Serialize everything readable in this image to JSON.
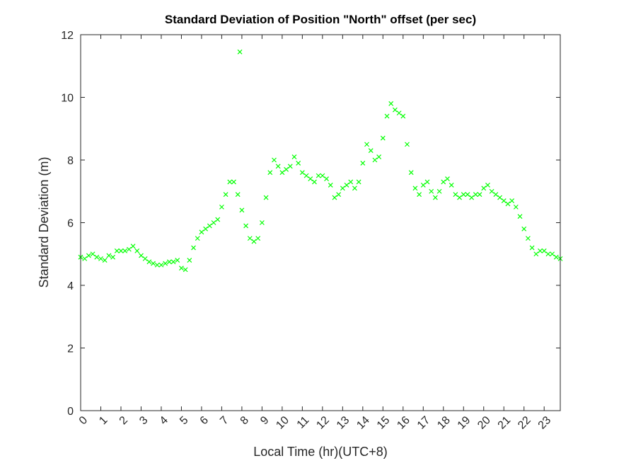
{
  "chart_data": {
    "type": "scatter",
    "title": "Standard Deviation of Position \"North\" offset (per sec)",
    "x_label": "Local Time (hr)(UTC+8)",
    "y_label": "Standard Deviation (m)",
    "xlim": [
      0,
      23.8
    ],
    "ylim": [
      0,
      12
    ],
    "xticks": [
      0,
      1,
      2,
      3,
      4,
      5,
      6,
      7,
      8,
      9,
      10,
      11,
      12,
      13,
      14,
      15,
      16,
      17,
      18,
      19,
      20,
      21,
      22,
      23
    ],
    "yticks": [
      0,
      2,
      4,
      6,
      8,
      10,
      12
    ],
    "series": [
      {
        "color": "#00ff00",
        "marker": "x",
        "x": [
          0,
          0.2,
          0.4,
          0.6,
          0.8,
          1.0,
          1.2,
          1.4,
          1.6,
          1.8,
          2.0,
          2.2,
          2.4,
          2.6,
          2.8,
          3.0,
          3.2,
          3.4,
          3.6,
          3.8,
          4.0,
          4.2,
          4.4,
          4.6,
          4.8,
          5.0,
          5.2,
          5.4,
          5.6,
          5.8,
          6.0,
          6.2,
          6.4,
          6.6,
          6.8,
          7.0,
          7.2,
          7.4,
          7.6,
          7.8,
          7.9,
          8.0,
          8.2,
          8.4,
          8.6,
          8.8,
          9.0,
          9.2,
          9.4,
          9.6,
          9.8,
          10.0,
          10.2,
          10.4,
          10.6,
          10.8,
          11.0,
          11.2,
          11.4,
          11.6,
          11.8,
          12.0,
          12.2,
          12.4,
          12.6,
          12.8,
          13.0,
          13.2,
          13.4,
          13.6,
          13.8,
          14.0,
          14.2,
          14.4,
          14.6,
          14.8,
          15.0,
          15.2,
          15.4,
          15.6,
          15.8,
          16.0,
          16.2,
          16.4,
          16.6,
          16.8,
          17.0,
          17.2,
          17.4,
          17.6,
          17.8,
          18.0,
          18.2,
          18.4,
          18.6,
          18.8,
          19.0,
          19.2,
          19.4,
          19.6,
          19.8,
          20.0,
          20.2,
          20.4,
          20.6,
          20.8,
          21.0,
          21.2,
          21.4,
          21.6,
          21.8,
          22.0,
          22.2,
          22.4,
          22.6,
          22.8,
          23.0,
          23.2,
          23.4,
          23.6,
          23.8
        ],
        "values": [
          4.9,
          4.85,
          4.95,
          5.0,
          4.9,
          4.85,
          4.8,
          4.95,
          4.9,
          5.1,
          5.1,
          5.1,
          5.15,
          5.25,
          5.1,
          4.95,
          4.85,
          4.75,
          4.7,
          4.65,
          4.65,
          4.7,
          4.75,
          4.75,
          4.8,
          4.55,
          4.5,
          4.8,
          5.2,
          5.5,
          5.7,
          5.8,
          5.9,
          6.0,
          6.1,
          6.5,
          6.9,
          7.3,
          7.3,
          6.9,
          11.45,
          6.4,
          5.9,
          5.5,
          5.4,
          5.5,
          6.0,
          6.8,
          7.6,
          8.0,
          7.8,
          7.6,
          7.7,
          7.8,
          8.1,
          7.9,
          7.6,
          7.5,
          7.4,
          7.3,
          7.5,
          7.5,
          7.4,
          7.2,
          6.8,
          6.9,
          7.1,
          7.2,
          7.3,
          7.1,
          7.3,
          7.9,
          8.5,
          8.3,
          8.0,
          8.1,
          8.7,
          9.4,
          9.8,
          9.6,
          9.5,
          9.4,
          8.5,
          7.6,
          7.1,
          6.9,
          7.2,
          7.3,
          7.0,
          6.8,
          7.0,
          7.3,
          7.4,
          7.2,
          6.9,
          6.8,
          6.9,
          6.9,
          6.8,
          6.9,
          6.9,
          7.1,
          7.2,
          7.0,
          6.9,
          6.8,
          6.7,
          6.6,
          6.7,
          6.5,
          6.2,
          5.8,
          5.5,
          5.2,
          5.0,
          5.1,
          5.1,
          5.0,
          5.0,
          4.9,
          4.85
        ]
      }
    ]
  }
}
